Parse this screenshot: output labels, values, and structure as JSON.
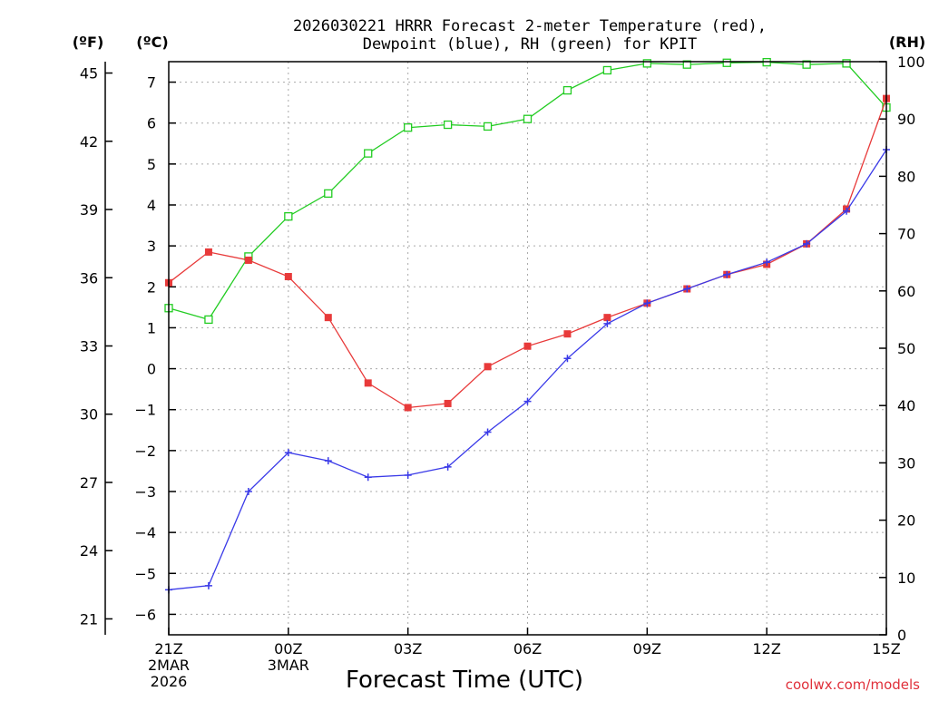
{
  "colors": {
    "temperature": "#e83a3a",
    "dewpoint": "#3a3ae8",
    "rh": "#22cc22",
    "credit": "#e0303a",
    "grid": "#aaaaaa",
    "axis": "#000000"
  },
  "chart_data": {
    "type": "line",
    "title_line1": "2026030221 HRRR Forecast 2-meter Temperature (red),",
    "title_line2": "Dewpoint (blue), RH (green) for KPIT",
    "xlabel": "Forecast Time (UTC)",
    "credit": "coolwx.com/models",
    "unit_f": "(ºF)",
    "unit_c": "(ºC)",
    "unit_rh": "(RH)",
    "x_range": [
      0,
      18
    ],
    "ylim_c": [
      -6.5,
      7.5
    ],
    "ylim_f": [
      20.3,
      45.5
    ],
    "ylim_rh": [
      0,
      100
    ],
    "x_ticks": [
      {
        "x": 0,
        "label": "21Z",
        "sub1": "2MAR",
        "sub2": "2026"
      },
      {
        "x": 3,
        "label": "00Z",
        "sub1": "3MAR",
        "sub2": ""
      },
      {
        "x": 6,
        "label": "03Z",
        "sub1": "",
        "sub2": ""
      },
      {
        "x": 9,
        "label": "06Z",
        "sub1": "",
        "sub2": ""
      },
      {
        "x": 12,
        "label": "09Z",
        "sub1": "",
        "sub2": ""
      },
      {
        "x": 15,
        "label": "12Z",
        "sub1": "",
        "sub2": ""
      },
      {
        "x": 18,
        "label": "15Z",
        "sub1": "",
        "sub2": ""
      }
    ],
    "c_ticks": [
      {
        "v": 7,
        "label": "7"
      },
      {
        "v": 6,
        "label": "6"
      },
      {
        "v": 5,
        "label": "5"
      },
      {
        "v": 4,
        "label": "4"
      },
      {
        "v": 3,
        "label": "3"
      },
      {
        "v": 2,
        "label": "2"
      },
      {
        "v": 1,
        "label": "1"
      },
      {
        "v": 0,
        "label": "0"
      },
      {
        "v": -1,
        "label": "−1"
      },
      {
        "v": -2,
        "label": "−2"
      },
      {
        "v": -3,
        "label": "−3"
      },
      {
        "v": -4,
        "label": "−4"
      },
      {
        "v": -5,
        "label": "−5"
      },
      {
        "v": -6,
        "label": "−6"
      }
    ],
    "f_ticks": [
      {
        "v": 45,
        "label": "45"
      },
      {
        "v": 42,
        "label": "42"
      },
      {
        "v": 39,
        "label": "39"
      },
      {
        "v": 36,
        "label": "36"
      },
      {
        "v": 33,
        "label": "33"
      },
      {
        "v": 30,
        "label": "30"
      },
      {
        "v": 27,
        "label": "27"
      },
      {
        "v": 24,
        "label": "24"
      },
      {
        "v": 21,
        "label": "21"
      }
    ],
    "rh_ticks": [
      {
        "v": 100,
        "label": "100"
      },
      {
        "v": 90,
        "label": "90"
      },
      {
        "v": 80,
        "label": "80"
      },
      {
        "v": 70,
        "label": "70"
      },
      {
        "v": 60,
        "label": "60"
      },
      {
        "v": 50,
        "label": "50"
      },
      {
        "v": 40,
        "label": "40"
      },
      {
        "v": 30,
        "label": "30"
      },
      {
        "v": 20,
        "label": "20"
      },
      {
        "v": 10,
        "label": "10"
      },
      {
        "v": 0,
        "label": "0"
      }
    ],
    "hours": [
      0,
      1,
      2,
      3,
      4,
      5,
      6,
      7,
      8,
      9,
      10,
      11,
      12,
      13,
      14,
      15,
      16,
      17,
      18
    ],
    "series": [
      {
        "name": "Temperature",
        "unit": "C",
        "marker": "square",
        "values": [
          2.1,
          2.85,
          2.65,
          2.25,
          1.25,
          -0.35,
          -0.95,
          -0.85,
          0.05,
          0.55,
          0.85,
          1.25,
          1.6,
          1.95,
          2.3,
          2.55,
          3.05,
          3.9,
          6.6
        ]
      },
      {
        "name": "Dewpoint",
        "unit": "C",
        "marker": "plus",
        "values": [
          -5.4,
          -5.3,
          -3.0,
          -2.05,
          -2.25,
          -2.65,
          -2.6,
          -2.4,
          -1.55,
          -0.8,
          0.25,
          1.1,
          1.6,
          1.95,
          2.3,
          2.6,
          3.05,
          3.85,
          5.35
        ]
      },
      {
        "name": "RH",
        "unit": "%",
        "marker": "open-square",
        "values": [
          57,
          55,
          66,
          73,
          77,
          84,
          88.5,
          89,
          88.7,
          90,
          95,
          98.5,
          99.7,
          99.5,
          99.8,
          99.9,
          99.5,
          99.7,
          92
        ]
      }
    ]
  }
}
